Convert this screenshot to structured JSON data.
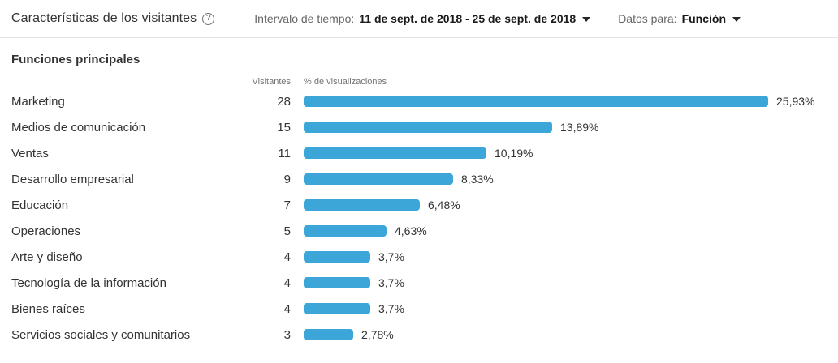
{
  "header": {
    "title": "Características de los visitantes",
    "time_range": {
      "label": "Intervalo de tiempo:",
      "value": "11 de sept. de 2018 - 25 de sept. de 2018"
    },
    "data_for": {
      "label": "Datos para:",
      "value": "Función"
    }
  },
  "section": {
    "title": "Funciones principales",
    "columns": {
      "visitors": "Visitantes",
      "views_pct": "% de visualizaciones"
    }
  },
  "chart_data": {
    "type": "bar",
    "orientation": "horizontal",
    "title": "Funciones principales",
    "categories": [
      "Marketing",
      "Medios de comunicación",
      "Ventas",
      "Desarrollo empresarial",
      "Educación",
      "Operaciones",
      "Arte y diseño",
      "Tecnología de la información",
      "Bienes raíces",
      "Servicios sociales y comunitarios"
    ],
    "series": [
      {
        "name": "Visitantes",
        "values": [
          28,
          15,
          11,
          9,
          7,
          5,
          4,
          4,
          4,
          3
        ]
      },
      {
        "name": "% de visualizaciones",
        "values": [
          25.93,
          13.89,
          10.19,
          8.33,
          6.48,
          4.63,
          3.7,
          3.7,
          3.7,
          2.78
        ]
      }
    ],
    "value_labels": [
      "25,93%",
      "13,89%",
      "10,19%",
      "8,33%",
      "6,48%",
      "4,63%",
      "3,7%",
      "3,7%",
      "3,7%",
      "2,78%"
    ],
    "xlim": [
      0,
      26
    ],
    "grid": false,
    "legend_position": "none",
    "bar_color": "#3CA6D8"
  },
  "colors": {
    "bar": "#3CA6D8",
    "text_dark": "#333333",
    "text_muted": "#737373",
    "divider": "#e3e3e3"
  }
}
